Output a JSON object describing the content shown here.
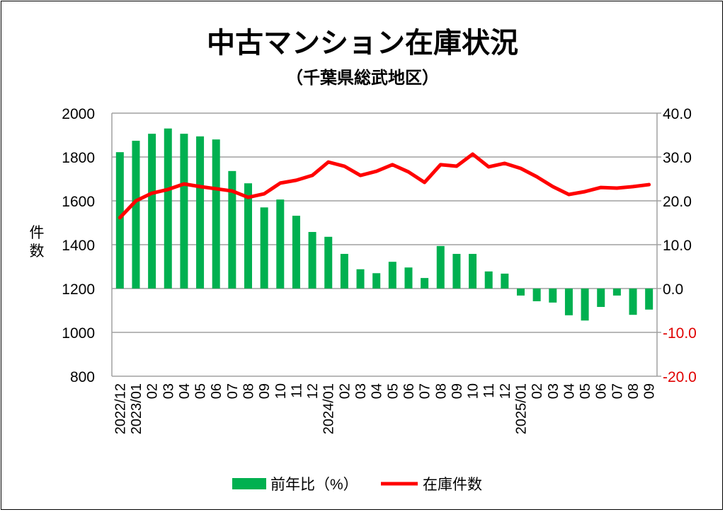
{
  "chart_data": {
    "type": "bar+line",
    "title": "中古マンション在庫状況",
    "subtitle": "（千葉県総武地区）",
    "ylabel": "件数",
    "categories": [
      "2022/12",
      "2023/01",
      "02",
      "03",
      "04",
      "05",
      "06",
      "07",
      "08",
      "09",
      "10",
      "11",
      "12",
      "2024/01",
      "02",
      "03",
      "04",
      "05",
      "06",
      "07",
      "08",
      "09",
      "10",
      "11",
      "12",
      "2025/01",
      "02",
      "03",
      "04",
      "05",
      "06",
      "07",
      "08",
      "09"
    ],
    "y_left": {
      "min": 800,
      "max": 2000,
      "step": 200,
      "ticks": [
        "2000",
        "1800",
        "1600",
        "1400",
        "1200",
        "1000",
        "800"
      ]
    },
    "y_right": {
      "min": -20,
      "max": 40,
      "step": 10,
      "ticks": [
        "40.0",
        "30.0",
        "20.0",
        "10.0",
        "0.0",
        "-10.0",
        "-20.0"
      ]
    },
    "grid": true,
    "legend_position": "bottom",
    "series": [
      {
        "name": "前年比（%）",
        "type": "bar",
        "axis": "right",
        "color": "#00b050",
        "values": [
          31.1,
          33.7,
          35.3,
          36.5,
          35.3,
          34.7,
          34.0,
          26.8,
          24.0,
          18.5,
          20.3,
          16.6,
          12.9,
          11.8,
          7.9,
          4.4,
          3.5,
          6.1,
          4.8,
          2.4,
          9.7,
          7.9,
          7.9,
          3.9,
          3.4,
          -1.6,
          -2.9,
          -3.2,
          -6.1,
          -7.3,
          -4.2,
          -1.6,
          -6.0,
          -4.8
        ]
      },
      {
        "name": "在庫件数",
        "type": "line",
        "axis": "left",
        "color": "#ff0000",
        "values": [
          1523,
          1600,
          1635,
          1652,
          1677,
          1665,
          1655,
          1645,
          1616,
          1632,
          1681,
          1694,
          1716,
          1777,
          1758,
          1716,
          1735,
          1765,
          1732,
          1684,
          1765,
          1758,
          1813,
          1755,
          1771,
          1748,
          1710,
          1665,
          1629,
          1642,
          1661,
          1658,
          1665,
          1674
        ]
      }
    ],
    "negative_tick_color": "#e00000"
  }
}
